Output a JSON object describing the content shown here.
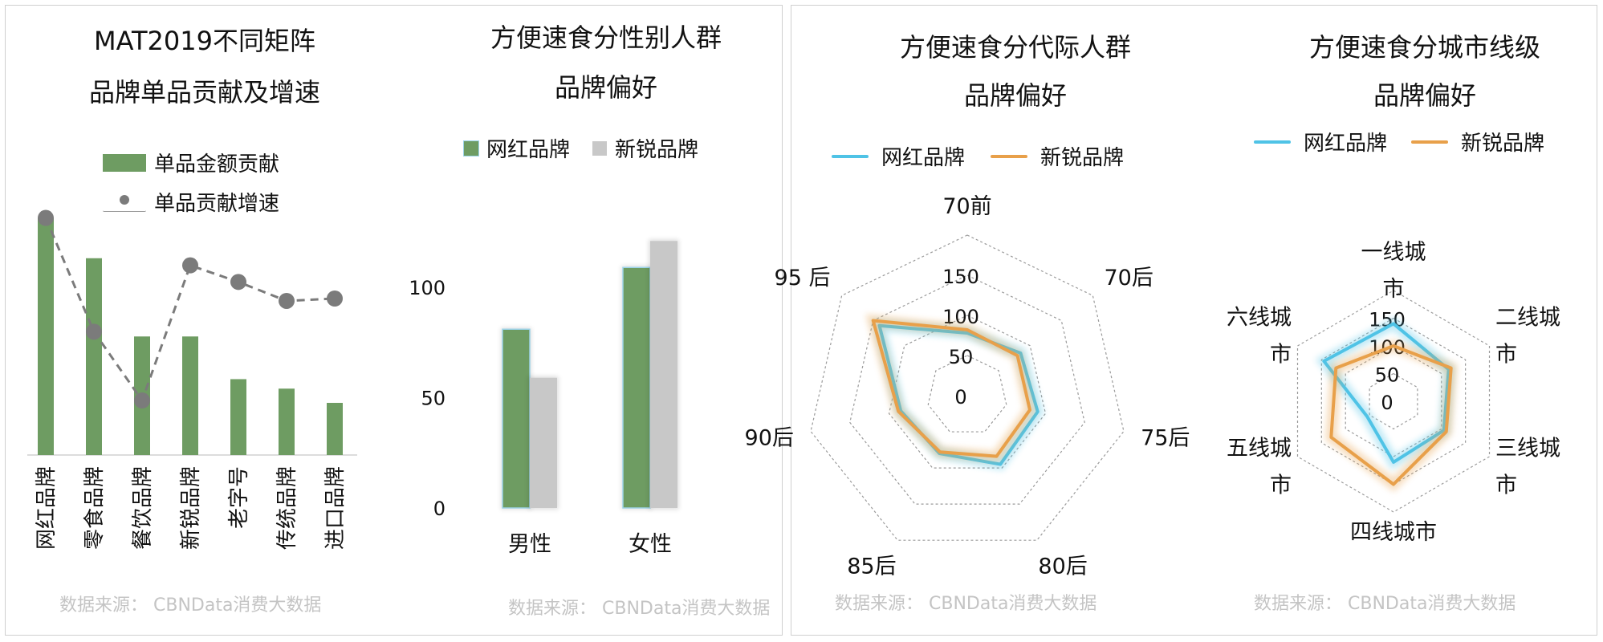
{
  "colors": {
    "green": "#6e9c62",
    "grey": "#c8c8c8",
    "dot": "#7b7b7b",
    "blue": "#4fc3e6",
    "orange": "#e8a04a"
  },
  "source": "数据来源： CBNData消费大数据",
  "chart_data": [
    {
      "type": "bar",
      "title": [
        "MAT2019不同矩阵",
        "品牌单品贡献及增速"
      ],
      "categories": [
        "网红品牌",
        "零食品牌",
        "餐饮品牌",
        "新锐品牌",
        "老字号",
        "传统品牌",
        "进口品牌"
      ],
      "series": [
        {
          "name": "单品金额贡献",
          "kind": "bar",
          "values": [
            100,
            83,
            50,
            50,
            32,
            28,
            22
          ]
        },
        {
          "name": "单品贡献增速",
          "kind": "line-dots",
          "values": [
            100,
            52,
            23,
            80,
            73,
            65,
            66
          ]
        }
      ],
      "ylim": [
        0,
        110
      ],
      "legend": "top"
    },
    {
      "type": "bar",
      "title": [
        "方便速食分性别人群",
        "品牌偏好"
      ],
      "categories": [
        "男性",
        "女性"
      ],
      "series": [
        {
          "name": "网红品牌",
          "values": [
            81,
            109
          ]
        },
        {
          "name": "新锐品牌",
          "values": [
            59,
            121
          ]
        }
      ],
      "yticks": [
        0,
        50,
        100
      ],
      "ylim": [
        0,
        120
      ],
      "legend": "top"
    },
    {
      "type": "radar",
      "title": [
        "方便速食分代际人群",
        "品牌偏好"
      ],
      "axes": [
        "70前",
        "70后",
        "75后",
        "80后",
        "85后",
        "90后",
        "95 后"
      ],
      "series": [
        {
          "name": "网红品牌",
          "values": [
            78,
            85,
            90,
            95,
            80,
            85,
            140
          ]
        },
        {
          "name": "新锐品牌",
          "values": [
            82,
            80,
            80,
            84,
            78,
            88,
            150
          ]
        }
      ],
      "rticks": [
        0,
        50,
        100,
        150
      ],
      "rlim": [
        0,
        200
      ],
      "legend": "top"
    },
    {
      "type": "radar",
      "title": [
        "方便速食分城市线级",
        "品牌偏好"
      ],
      "axes": [
        "一线城市",
        "二线城市",
        "三线城市",
        "四线城市",
        "五线城市",
        "六线城市"
      ],
      "axis_label_lines": [
        [
          "一线城",
          "市"
        ],
        [
          "二线城",
          "市"
        ],
        [
          "三线城",
          "市"
        ],
        [
          "四线城市"
        ],
        [
          "五线城",
          "市"
        ],
        [
          "六线城",
          "市"
        ]
      ],
      "series": [
        {
          "name": "网红品牌",
          "values": [
            140,
            115,
            105,
            110,
            55,
            145
          ]
        },
        {
          "name": "新锐品牌",
          "values": [
            100,
            120,
            110,
            150,
            130,
            120
          ]
        }
      ],
      "rticks": [
        0,
        50,
        100,
        150
      ],
      "rlim": [
        0,
        200
      ],
      "legend": "top"
    }
  ]
}
